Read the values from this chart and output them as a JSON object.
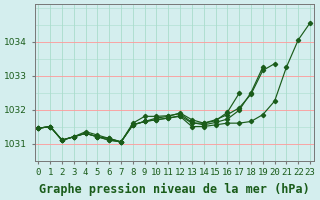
{
  "title": "Graphe pression niveau de la mer (hPa)",
  "xlabel_ticks": [
    "0",
    "1",
    "2",
    "3",
    "4",
    "5",
    "6",
    "7",
    "8",
    "9",
    "10",
    "11",
    "12",
    "13",
    "14",
    "15",
    "16",
    "17",
    "18",
    "19",
    "20",
    "21",
    "22",
    "23"
  ],
  "yticks": [
    1031,
    1032,
    1033,
    1034
  ],
  "ylim": [
    1030.5,
    1035.1
  ],
  "xlim": [
    -0.3,
    23.3
  ],
  "bg_color": "#d4eeee",
  "grid_color_major": "#ff9999",
  "grid_color_minor": "#aaddcc",
  "line_color": "#1a5c1a",
  "series": [
    [
      1031.45,
      1031.5,
      1031.1,
      1031.2,
      1031.3,
      1031.2,
      1031.1,
      1031.05,
      1031.55,
      1031.65,
      1031.7,
      1031.75,
      1031.8,
      1031.5,
      1031.5,
      1031.55,
      1031.6,
      1031.6,
      1031.65,
      1031.85,
      1032.25,
      1033.25,
      1034.05,
      1034.55
    ],
    [
      1031.45,
      1031.5,
      1031.1,
      1031.2,
      1031.3,
      1031.2,
      1031.1,
      1031.05,
      1031.55,
      1031.65,
      1031.75,
      1031.8,
      1031.9,
      1031.7,
      1031.6,
      1031.7,
      1031.85,
      1032.05,
      1032.45,
      1033.15,
      1033.35,
      null,
      null,
      null
    ],
    [
      1031.45,
      1031.5,
      1031.1,
      1031.2,
      1031.3,
      1031.2,
      1031.15,
      1031.05,
      1031.6,
      1031.8,
      1031.8,
      1031.82,
      1031.88,
      1031.62,
      1031.55,
      1031.62,
      1031.72,
      1031.98,
      1032.5,
      1033.25,
      null,
      null,
      null,
      null
    ],
    [
      1031.45,
      1031.5,
      1031.1,
      1031.2,
      1031.35,
      1031.25,
      1031.15,
      1031.05,
      1031.55,
      1031.65,
      1031.7,
      1031.75,
      1031.82,
      1031.6,
      1031.6,
      1031.67,
      1031.92,
      1032.48,
      null,
      null,
      null,
      null,
      null,
      null
    ]
  ],
  "title_fontsize": 8.5,
  "tick_fontsize": 6.5,
  "fig_width": 3.2,
  "fig_height": 2.0,
  "dpi": 100
}
